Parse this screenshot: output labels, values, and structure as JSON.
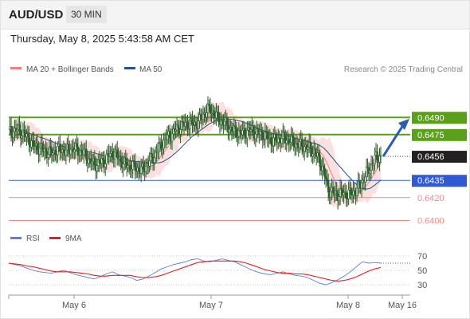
{
  "header": {
    "pair": "AUD/USD",
    "timeframe": "30 MIN",
    "datetime": "Thursday, May 8, 2025 5:43:58 AM CET"
  },
  "legend": {
    "items": [
      {
        "label": "MA 20 + Bollinger Bands",
        "color": "#f08080"
      },
      {
        "label": "MA 50",
        "color": "#2b4f8c"
      }
    ],
    "credit": "Research © 2025 Trading Central"
  },
  "rsi_legend": {
    "items": [
      {
        "label": "RSI",
        "color": "#5b7fd6"
      },
      {
        "label": "9MA",
        "color": "#e02020"
      }
    ]
  },
  "colors": {
    "resistance": "#5aa01a",
    "support_blue": "#2f5ad6",
    "support_red": "#f08a8a",
    "current": "#222222",
    "candle": "#2e5f2e",
    "bollinger_fill": "#fbd9d9",
    "arrow": "#2a5db0"
  },
  "chart_data": [
    {
      "type": "line",
      "description_series": "price",
      "x_ticks": [
        "May 6",
        "May 7",
        "May 8",
        "May 16"
      ],
      "ylim": [
        0.6392,
        0.6525
      ],
      "series": [
        {
          "name": "MA 20 + Bollinger Bands",
          "role": "ma20"
        },
        {
          "name": "MA 50",
          "role": "ma50"
        }
      ],
      "levels": [
        {
          "label": "0.6490",
          "value": 0.649,
          "kind": "resistance"
        },
        {
          "label": "0.6475",
          "value": 0.6475,
          "kind": "resistance"
        },
        {
          "label": "0.6456",
          "value": 0.6456,
          "kind": "current"
        },
        {
          "label": "0.6435",
          "value": 0.6435,
          "kind": "support_blue"
        },
        {
          "label": "0.6420",
          "value": 0.642,
          "kind": "support_red"
        },
        {
          "label": "0.6400",
          "value": 0.64,
          "kind": "support_red"
        }
      ],
      "price_path": [
        [
          0,
          0.6477
        ],
        [
          4,
          0.6478
        ],
        [
          8,
          0.6479
        ],
        [
          12,
          0.6476
        ],
        [
          16,
          0.6472
        ],
        [
          20,
          0.6466
        ],
        [
          24,
          0.6464
        ],
        [
          28,
          0.6462
        ],
        [
          32,
          0.646
        ],
        [
          36,
          0.6459
        ],
        [
          40,
          0.6461
        ],
        [
          44,
          0.6462
        ],
        [
          48,
          0.646
        ],
        [
          52,
          0.6463
        ],
        [
          56,
          0.6462
        ],
        [
          60,
          0.646
        ],
        [
          64,
          0.6458
        ],
        [
          68,
          0.6452
        ],
        [
          72,
          0.6449
        ],
        [
          76,
          0.645
        ],
        [
          80,
          0.6452
        ],
        [
          84,
          0.6457
        ],
        [
          88,
          0.6459
        ],
        [
          92,
          0.6455
        ],
        [
          96,
          0.645
        ],
        [
          100,
          0.6448
        ],
        [
          104,
          0.6447
        ],
        [
          108,
          0.6445
        ],
        [
          112,
          0.6444
        ],
        [
          116,
          0.6449
        ],
        [
          120,
          0.6454
        ],
        [
          124,
          0.646
        ],
        [
          128,
          0.6466
        ],
        [
          132,
          0.6472
        ],
        [
          136,
          0.6475
        ],
        [
          140,
          0.6479
        ],
        [
          144,
          0.6482
        ],
        [
          148,
          0.6484
        ],
        [
          152,
          0.6485
        ],
        [
          156,
          0.6484
        ],
        [
          160,
          0.6487
        ],
        [
          164,
          0.6494
        ],
        [
          168,
          0.6497
        ],
        [
          172,
          0.6494
        ],
        [
          176,
          0.6488
        ],
        [
          180,
          0.6486
        ],
        [
          184,
          0.6482
        ],
        [
          188,
          0.6478
        ],
        [
          192,
          0.6477
        ],
        [
          196,
          0.6476
        ],
        [
          200,
          0.6478
        ],
        [
          204,
          0.6479
        ],
        [
          208,
          0.6476
        ],
        [
          212,
          0.6476
        ],
        [
          216,
          0.6473
        ],
        [
          220,
          0.647
        ],
        [
          224,
          0.647
        ],
        [
          228,
          0.6472
        ],
        [
          232,
          0.6471
        ],
        [
          236,
          0.647
        ],
        [
          240,
          0.6467
        ],
        [
          244,
          0.6466
        ],
        [
          248,
          0.6465
        ],
        [
          252,
          0.6463
        ],
        [
          256,
          0.646
        ],
        [
          260,
          0.6454
        ],
        [
          264,
          0.6443
        ],
        [
          268,
          0.6427
        ],
        [
          272,
          0.6424
        ],
        [
          276,
          0.6423
        ],
        [
          280,
          0.6424
        ],
        [
          284,
          0.6423
        ],
        [
          288,
          0.6424
        ],
        [
          292,
          0.6427
        ],
        [
          296,
          0.6433
        ],
        [
          300,
          0.6441
        ],
        [
          304,
          0.6448
        ],
        [
          308,
          0.6455
        ],
        [
          312,
          0.6456
        ]
      ],
      "forecast_arrow": {
        "from": 0.6456,
        "to": 0.6486
      }
    },
    {
      "type": "line",
      "title": "RSI",
      "ylim": [
        20,
        80
      ],
      "y_ticks": [
        70,
        50,
        30
      ],
      "series": [
        {
          "name": "RSI",
          "values": [
            60,
            58,
            56,
            53,
            50,
            48,
            47,
            46,
            48,
            50,
            47,
            44,
            42,
            40,
            38,
            41,
            45,
            48,
            44,
            42,
            40,
            36,
            38,
            42,
            47,
            52,
            55,
            58,
            60,
            62,
            65,
            66,
            63,
            62,
            64,
            66,
            64,
            62,
            58,
            54,
            50,
            47,
            45,
            44,
            46,
            48,
            45,
            43,
            42,
            40,
            36,
            32,
            30,
            33,
            37,
            42,
            48,
            55,
            62,
            60,
            61,
            60
          ]
        },
        {
          "name": "9MA",
          "values": [
            60,
            59,
            58,
            56,
            55,
            53,
            51,
            49,
            48,
            48,
            48,
            47,
            46,
            45,
            43,
            42,
            42,
            43,
            43,
            43,
            43,
            41,
            40,
            40,
            41,
            43,
            46,
            49,
            52,
            55,
            58,
            61,
            62,
            63,
            63,
            63,
            63,
            63,
            62,
            60,
            57,
            54,
            51,
            49,
            47,
            46,
            46,
            45,
            45,
            44,
            42,
            40,
            38,
            36,
            35,
            36,
            38,
            41,
            45,
            49,
            52,
            54
          ]
        }
      ]
    }
  ]
}
